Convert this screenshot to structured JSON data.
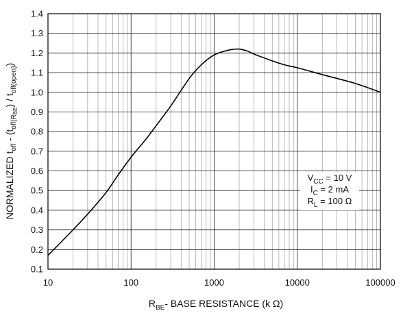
{
  "chart_data": {
    "type": "line",
    "x_scale": "log",
    "xlim": [
      10,
      100000
    ],
    "ylim": [
      0.1,
      1.4
    ],
    "x_ticks": [
      10,
      100,
      1000,
      10000,
      100000
    ],
    "x_tick_labels": [
      "10",
      "100",
      "1000",
      "10000",
      "100000"
    ],
    "y_ticks": [
      0.1,
      0.2,
      0.3,
      0.4,
      0.5,
      0.6,
      0.7,
      0.8,
      0.9,
      1.0,
      1.1,
      1.2,
      1.3,
      1.4
    ],
    "y_tick_labels": [
      "0.1",
      "0.2",
      "0.3",
      "0.4",
      "0.5",
      "0.6",
      "0.7",
      "0.8",
      "0.9",
      "1.0",
      "1.1",
      "1.2",
      "1.3",
      "1.4"
    ],
    "grid": true,
    "xlabel": {
      "main": "R",
      "sub": "BE",
      "rest": "- BASE RESISTANCE (k Ω)"
    },
    "ylabel": {
      "p1": "NORMALIZED t",
      "s1": "off",
      "p2": " - (t",
      "s2": "off(R",
      "s3": "BE",
      "p3": ") / t",
      "s4": "off(open)",
      "p4": ")"
    },
    "annotation": [
      {
        "main": "V",
        "sub": "CC",
        "rest": " = 10 V"
      },
      {
        "main": "I",
        "sub": "C",
        "rest": " = 2 mA"
      },
      {
        "main": "R",
        "sub": "L",
        "rest": " = 100 Ω"
      }
    ],
    "annotation_placement": "right-middle",
    "series": [
      {
        "x": [
          10,
          20,
          30,
          50,
          70,
          100,
          150,
          200,
          300,
          500,
          700,
          1000,
          1500,
          2000,
          2500,
          3000,
          5000,
          7000,
          10000,
          20000,
          50000,
          100000
        ],
        "y": [
          0.17,
          0.3,
          0.38,
          0.49,
          0.58,
          0.67,
          0.76,
          0.83,
          0.93,
          1.07,
          1.14,
          1.19,
          1.215,
          1.22,
          1.21,
          1.195,
          1.16,
          1.14,
          1.125,
          1.09,
          1.045,
          1.0
        ]
      }
    ]
  }
}
